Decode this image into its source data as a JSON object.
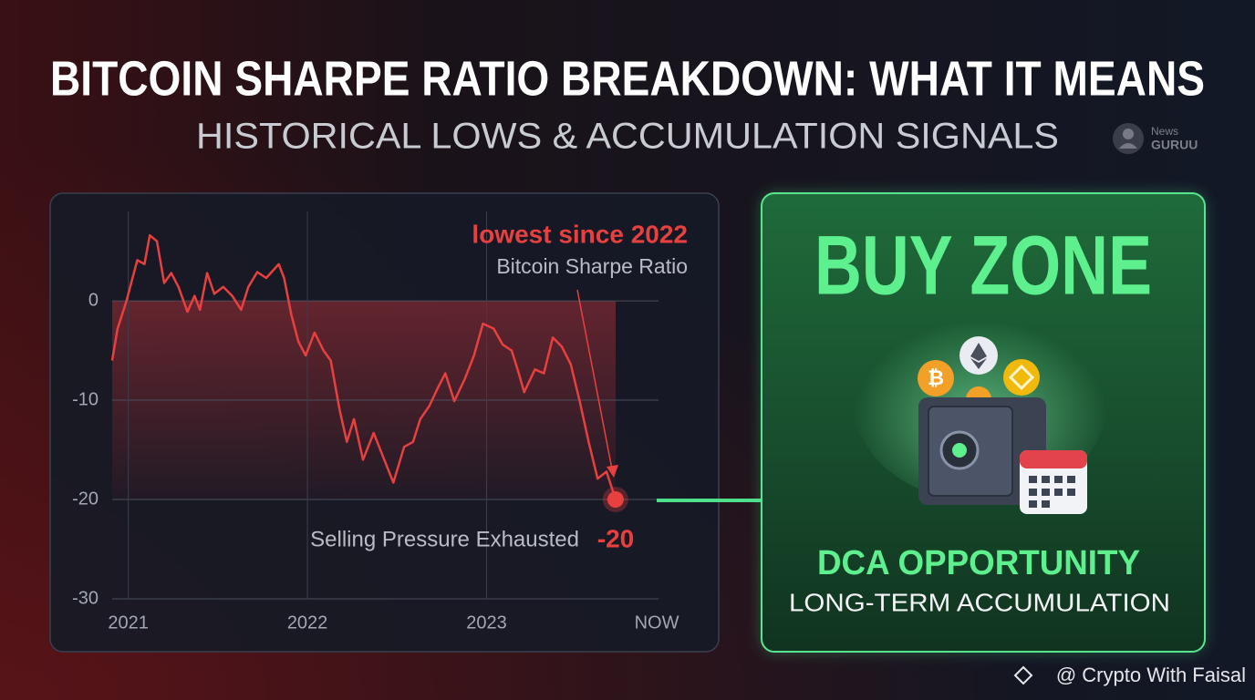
{
  "header": {
    "title": "BITCOIN SHARPE RATIO BREAKDOWN: WHAT IT MEANS",
    "subtitle": "HISTORICAL LOWS & ACCUMULATION SIGNALS",
    "badge_top": "News",
    "badge_bottom": "GURUU"
  },
  "chart_data": {
    "type": "line",
    "annotation_title": "lowest since 2022",
    "annotation_note": "Selling Pressure Exhausted",
    "x": [
      2020.91,
      2020.94,
      2020.99,
      2021.05,
      2021.09,
      2021.12,
      2021.16,
      2021.2,
      2021.24,
      2021.28,
      2021.33,
      2021.37,
      2021.4,
      2021.44,
      2021.48,
      2021.53,
      2021.58,
      2021.63,
      2021.67,
      2021.72,
      2021.77,
      2021.84,
      2021.87,
      2021.91,
      2021.95,
      2021.99,
      2022.04,
      2022.09,
      2022.13,
      2022.18,
      2022.22,
      2022.26,
      2022.31,
      2022.37,
      2022.42,
      2022.48,
      2022.54,
      2022.59,
      2022.63,
      2022.68,
      2022.73,
      2022.77,
      2022.82,
      2022.88,
      2022.93,
      2022.98,
      2023.04,
      2023.09,
      2023.14,
      2023.18,
      2023.21,
      2023.27,
      2023.32,
      2023.37,
      2023.42,
      2023.47,
      2023.52,
      2023.57,
      2023.62,
      2023.67,
      2023.72
    ],
    "series": [
      {
        "name": "Bitcoin Sharpe Ratio",
        "color": "#e8403f",
        "values": [
          -6,
          -2.8,
          0,
          4.1,
          3.7,
          6.6,
          6,
          1.8,
          2.8,
          1.4,
          -1.1,
          0.5,
          -0.9,
          2.8,
          0.7,
          1.4,
          0.5,
          -0.9,
          1.4,
          2.9,
          2.3,
          3.7,
          2.3,
          -1.4,
          -4.1,
          -5.5,
          -3.2,
          -5,
          -6,
          -11,
          -14.2,
          -11.9,
          -16,
          -13.3,
          -15.6,
          -18.3,
          -14.7,
          -14.2,
          -11.9,
          -10.6,
          -8.7,
          -7.3,
          -10.1,
          -7.8,
          -5.5,
          -2.3,
          -2.8,
          -4.4,
          -5,
          -7.3,
          -9.2,
          -6.9,
          -7.3,
          -3.7,
          -4.6,
          -6.4,
          -10.1,
          -14.2,
          -17.9,
          -17.2,
          -20
        ]
      }
    ],
    "xlim": [
      2020.91,
      2023.96
    ],
    "xticks": [
      2021,
      2022,
      2023,
      {
        "value": 2023.95,
        "label": "NOW"
      }
    ],
    "ylim": [
      -30,
      9
    ],
    "yticks": [
      0,
      -10,
      -20,
      -30
    ],
    "grid": true
  },
  "panel": {
    "title": "BUY ZONE",
    "headline": "DCA OPPORTUNITY",
    "subline": "LONG-TERM ACCUMULATION"
  },
  "footer": {
    "credit": "@ Crypto With Faisal"
  }
}
